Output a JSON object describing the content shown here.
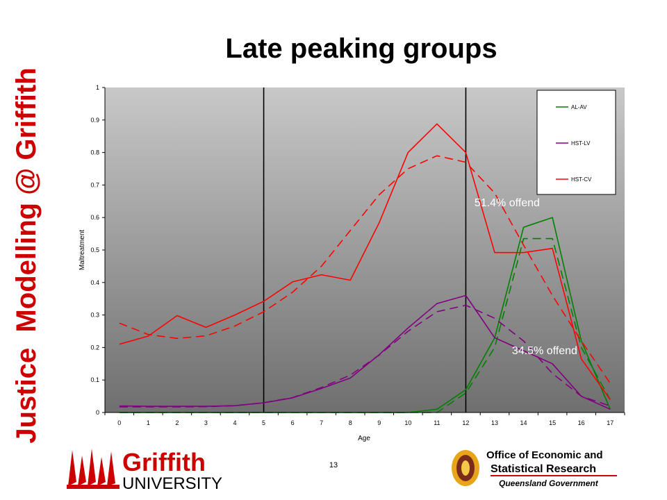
{
  "side_title": {
    "word1": "Justice",
    "word2": "Modelling",
    "word3": "@ Griffith"
  },
  "slide_title": "Late peaking groups",
  "page_number": "13",
  "logos": {
    "griffith": {
      "line1": "Griffith",
      "line2": "UNIVERSITY"
    },
    "oesr": {
      "line1": "Office of Economic and",
      "line2": "Statistical Research",
      "line3": "Queensland Government"
    }
  },
  "colors": {
    "accent_red": "#cc0000",
    "series_green": "#008000",
    "series_purple": "#800080",
    "series_red": "#ff0000"
  },
  "chart_data": {
    "type": "line",
    "xlabel": "Age",
    "ylabel": "Maltreatment",
    "x": [
      0,
      1,
      2,
      3,
      4,
      5,
      6,
      7,
      8,
      9,
      10,
      11,
      12,
      13,
      14,
      15,
      16,
      17
    ],
    "ylim": [
      0,
      1
    ],
    "yticks": [
      "0",
      "0.1",
      "0.2",
      "0.3",
      "0.4",
      "0.5",
      "0.6",
      "0.7",
      "0.8",
      "0.9",
      "1"
    ],
    "xticks": [
      "0",
      "1",
      "2",
      "3",
      "4",
      "5",
      "6",
      "7",
      "8",
      "9",
      "10",
      "11",
      "12",
      "13",
      "14",
      "15",
      "16",
      "17"
    ],
    "grid": "vertical lines at ages 5 and 12",
    "legend_position": "top-right",
    "vertical_lines": [
      5,
      12
    ],
    "series": [
      {
        "name": "AL-AV",
        "color": "#008000",
        "style": "solid",
        "values": [
          0,
          0,
          0,
          0,
          0,
          0,
          0,
          0,
          0,
          0,
          0,
          0.01,
          0.07,
          0.23,
          0.57,
          0.6,
          0.22,
          0.01
        ]
      },
      {
        "name": "",
        "color": "#008000",
        "style": "dashed",
        "values": [
          0,
          0,
          0,
          0,
          0,
          0,
          0,
          0,
          0,
          0,
          0,
          0,
          0.06,
          0.2,
          0.535,
          0.535,
          0.2,
          0.04
        ]
      },
      {
        "name": "HST-LV",
        "color": "#800080",
        "style": "solid",
        "values": [
          0.02,
          0.019,
          0.019,
          0.019,
          0.021,
          0.03,
          0.045,
          0.074,
          0.106,
          0.178,
          0.26,
          0.335,
          0.36,
          0.23,
          0.19,
          0.15,
          0.05,
          0.01
        ]
      },
      {
        "name": "",
        "color": "#800080",
        "style": "dashed",
        "values": [
          0.017,
          0.017,
          0.017,
          0.018,
          0.021,
          0.03,
          0.046,
          0.077,
          0.115,
          0.177,
          0.25,
          0.31,
          0.33,
          0.29,
          0.22,
          0.12,
          0.05,
          0.02
        ]
      },
      {
        "name": "HST-CV",
        "color": "#ff0000",
        "style": "solid",
        "values": [
          0.21,
          0.235,
          0.298,
          0.262,
          0.3,
          0.342,
          0.402,
          0.424,
          0.407,
          0.584,
          0.8,
          0.888,
          0.8,
          0.492,
          0.492,
          0.505,
          0.165,
          0.04
        ]
      },
      {
        "name": "",
        "color": "#ff0000",
        "style": "dashed",
        "values": [
          0.275,
          0.24,
          0.228,
          0.236,
          0.266,
          0.31,
          0.37,
          0.45,
          0.56,
          0.67,
          0.75,
          0.79,
          0.77,
          0.675,
          0.515,
          0.36,
          0.22,
          0.09
        ]
      }
    ],
    "annotations": [
      {
        "text": "51.4% offend",
        "x": 12.8,
        "y": 0.635
      },
      {
        "text": "34.5% offend",
        "x": 14.1,
        "y": 0.18
      }
    ]
  }
}
